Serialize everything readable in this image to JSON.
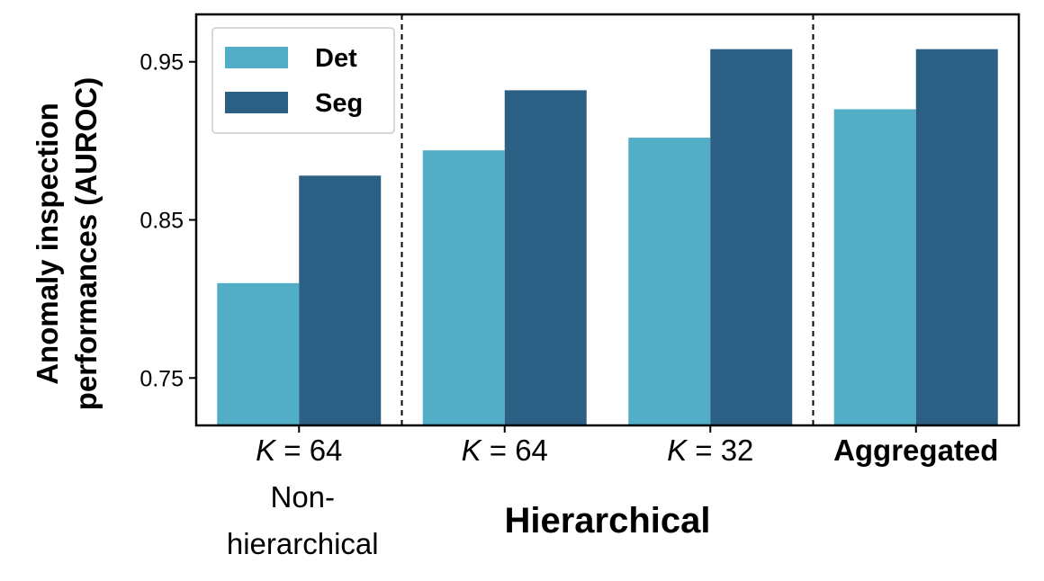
{
  "chart_data": {
    "type": "bar",
    "categories": [
      {
        "main": "= 64",
        "italic_prefix": "K",
        "sub": "Non-\nhierarchical"
      },
      {
        "main": "= 64",
        "italic_prefix": "K"
      },
      {
        "main": "= 32",
        "italic_prefix": "K"
      },
      {
        "main": "Aggregated",
        "bold": true
      }
    ],
    "series": [
      {
        "name": "Det",
        "color": "#52adc6",
        "values": [
          0.81,
          0.894,
          0.902,
          0.92
        ]
      },
      {
        "name": "Seg",
        "color": "#2c5f84",
        "values": [
          0.878,
          0.932,
          0.958,
          0.958
        ]
      }
    ],
    "ylabel_line1": "Anomaly inspection",
    "ylabel_line2": "performances (AUROC)",
    "group_label": "Hierarchical",
    "yticks": [
      0.75,
      0.85,
      0.95
    ],
    "ytick_labels": [
      "0.75",
      "0.85",
      "0.95"
    ],
    "ylim": [
      0.72,
      0.98
    ],
    "separators_after_category": [
      0,
      2
    ],
    "legend_position": "upper-left",
    "grid": false
  }
}
